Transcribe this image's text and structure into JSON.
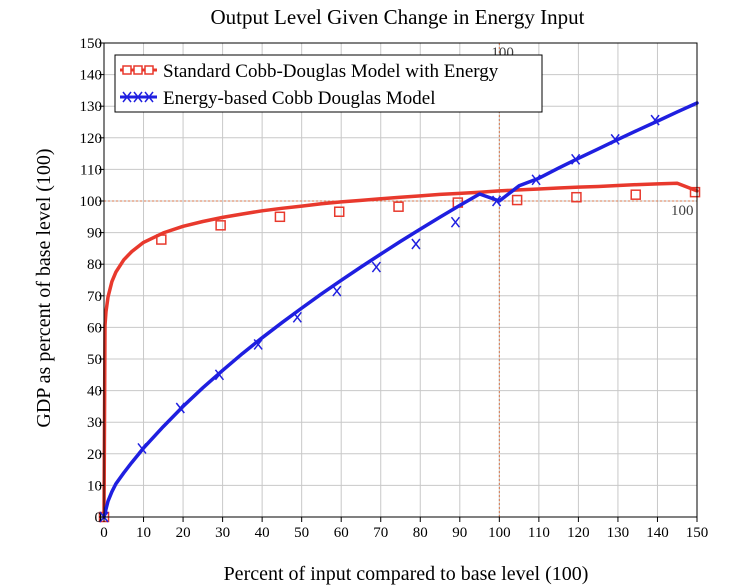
{
  "chart_data": {
    "type": "line",
    "title": "Output Level Given Change in Energy Input",
    "xlabel": "Percent of input compared to base level (100)",
    "ylabel": "GDP as percent of base level (100)",
    "xlim": [
      0,
      150
    ],
    "ylim": [
      0,
      150
    ],
    "x_ticks": [
      "0",
      "10",
      "20",
      "30",
      "40",
      "50",
      "60",
      "70",
      "80",
      "90",
      "100",
      "110",
      "120",
      "130",
      "140",
      "150"
    ],
    "y_ticks": [
      "0",
      "10",
      "20",
      "30",
      "40",
      "50",
      "60",
      "70",
      "80",
      "90",
      "100",
      "110",
      "120",
      "130",
      "140",
      "150"
    ],
    "grid": true,
    "legend_position": "top-left",
    "reference_lines": [
      {
        "axis": "x",
        "value": 100,
        "label": "100"
      },
      {
        "axis": "y",
        "value": 100,
        "label": "100"
      }
    ],
    "series": [
      {
        "name": "Standard Cobb-Douglas Model with Energy",
        "color": "#e8392d",
        "marker": "square",
        "x": [
          0,
          0.25,
          0.5,
          1,
          2,
          3,
          5,
          7,
          10,
          15,
          20,
          25,
          30,
          35,
          40,
          45,
          50,
          55,
          60,
          65,
          70,
          75,
          80,
          85,
          90,
          95,
          100,
          105,
          110,
          115,
          120,
          125,
          130,
          135,
          140,
          145,
          150
        ],
        "y": [
          0,
          60.7,
          65.0,
          69.6,
          74.5,
          77.5,
          81.4,
          84.0,
          86.9,
          89.9,
          92.0,
          93.5,
          94.8,
          95.9,
          96.9,
          97.7,
          98.4,
          99.1,
          99.7,
          100.2,
          100.7,
          101.2,
          101.6,
          102.1,
          102.4,
          102.8,
          103.2,
          103.5,
          103.8,
          104.1,
          104.4,
          104.6,
          104.9,
          105.2,
          105.4,
          105.6,
          103.2
        ],
        "marker_x": [
          0,
          14.5,
          29.5,
          44.5,
          59.5,
          74.5,
          89.5,
          104.5,
          119.5,
          134.5,
          149.5
        ],
        "marker_y": [
          0,
          87.8,
          92.3,
          95.0,
          96.6,
          98.2,
          99.5,
          100.3,
          101.2,
          102.0,
          102.8
        ]
      },
      {
        "name": "Energy-based Cobb Douglas Model",
        "color": "#1f1fe0",
        "marker": "x",
        "x": [
          0,
          1,
          2,
          3,
          5,
          7,
          10,
          15,
          20,
          25,
          30,
          35,
          40,
          45,
          50,
          55,
          60,
          65,
          70,
          75,
          80,
          85,
          90,
          95,
          100,
          105,
          110,
          115,
          120,
          125,
          130,
          135,
          140,
          145,
          150
        ],
        "y": [
          0,
          5.0,
          8.0,
          10.5,
          14.0,
          17.2,
          21.8,
          28.6,
          35.0,
          40.9,
          46.4,
          51.7,
          56.7,
          61.5,
          66.1,
          70.6,
          74.9,
          79.1,
          83.2,
          87.2,
          91.1,
          94.9,
          98.6,
          102.2,
          100.0,
          104.8,
          107.2,
          110.4,
          113.5,
          116.5,
          119.5,
          122.4,
          125.3,
          128.2,
          131.0
        ],
        "marker_x": [
          0,
          9.6,
          19.3,
          29.2,
          39.0,
          48.9,
          58.9,
          68.9,
          78.9,
          88.9,
          99.3,
          109.3,
          119.3,
          129.3,
          139.4
        ],
        "marker_y": [
          0,
          21.7,
          34.5,
          45.0,
          54.6,
          63.2,
          71.5,
          79.1,
          86.4,
          93.3,
          100.0,
          106.7,
          113.2,
          119.5,
          125.6
        ]
      }
    ]
  }
}
